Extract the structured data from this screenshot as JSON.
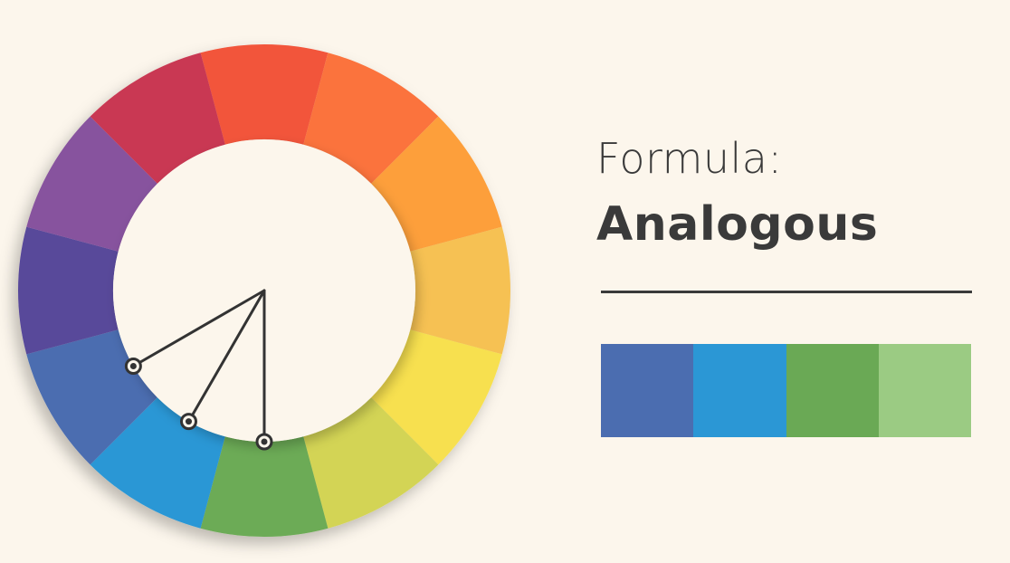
{
  "heading": {
    "formula_label": "Formula:",
    "scheme_name": "Analogous"
  },
  "color_wheel": {
    "segments": [
      {
        "name": "red",
        "color": "#f2543b"
      },
      {
        "name": "red-orange",
        "color": "#fb733c"
      },
      {
        "name": "orange",
        "color": "#fd9f3b"
      },
      {
        "name": "yellow-orange",
        "color": "#f6c153"
      },
      {
        "name": "yellow",
        "color": "#f7e04f"
      },
      {
        "name": "yellow-green",
        "color": "#d3d455"
      },
      {
        "name": "green",
        "color": "#6cab56"
      },
      {
        "name": "blue",
        "color": "#2b97d5"
      },
      {
        "name": "blue-violet",
        "color": "#4b6db0"
      },
      {
        "name": "violet",
        "color": "#58489a"
      },
      {
        "name": "red-violet",
        "color": "#87539e"
      },
      {
        "name": "crimson",
        "color": "#c93752"
      }
    ],
    "selected_segments": [
      "blue-violet",
      "blue",
      "green"
    ],
    "marker_color": "#333333"
  },
  "palette": {
    "swatches": [
      {
        "name": "blue-violet",
        "color": "#4b6db0"
      },
      {
        "name": "blue",
        "color": "#2b97d5"
      },
      {
        "name": "green",
        "color": "#6aa955"
      },
      {
        "name": "light-green",
        "color": "#9bcb83"
      }
    ]
  },
  "colors": {
    "background": "#fcf6ec",
    "text": "#3a3a3a"
  }
}
